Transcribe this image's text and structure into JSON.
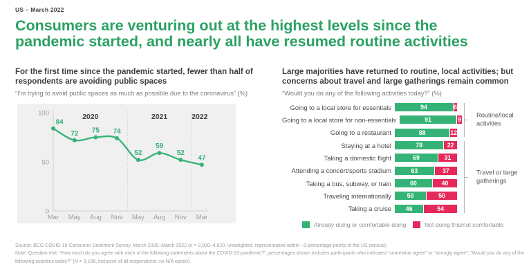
{
  "meta_label": "US – March 2022",
  "title": "Consumers are venturing out at the highest levels since the pandemic started, and nearly all have resumed routine activities",
  "colors": {
    "title_green": "#2ba163",
    "series_green": "#35b377",
    "series_pink": "#e52a5b",
    "panel_background": "#f0f0f0",
    "heading_text": "#3f3f3f",
    "muted_text": "#9b9b9b"
  },
  "footer": {
    "source": "Source: BCG COVID-19 Consumer Sentiment Survey, March 2020–March 2022 (n = 2,000–4,820, unweighted, representative within ~3 percentage points of the US census).",
    "note": "Note: Question text: “How much do you agree with each of the following statements about the COVID-19 pandemic?”, percentages shown includes participants who indicated “somewhat agree” or “strongly agree”; “Would you do any of the following activities today?” (N = 3,108, inclusive of all respondents; no N/A option)."
  },
  "chart_data": [
    {
      "id": "avoiding-public-spaces",
      "type": "line",
      "title": "For the first time since the pandemic started, fewer than half of respondents are avoiding public spaces",
      "subtitle": "“I'm trying to avoid public spaces as much as possible due to the coronavirus” (%)",
      "x": [
        "Mar",
        "May",
        "Aug",
        "Nov",
        "May",
        "Aug",
        "Nov",
        "Mar"
      ],
      "year_groups": [
        {
          "label": "2020",
          "from": 0,
          "to": 3
        },
        {
          "label": "2021",
          "from": 4,
          "to": 6
        },
        {
          "label": "2022",
          "from": 7,
          "to": 7
        }
      ],
      "values": [
        84,
        72,
        75,
        74,
        52,
        59,
        52,
        47
      ],
      "ylim": [
        0,
        100
      ],
      "yticks": [
        0,
        50,
        100
      ],
      "grid": false,
      "line_color": "#35b377"
    },
    {
      "id": "activities-today",
      "type": "bar",
      "stacked": true,
      "orientation": "horizontal",
      "title": "Large majorities have returned to routine, local activities; but concerns about travel and large gatherings remain common",
      "subtitle": "“Would you do any of the following activities today?” (%)",
      "categories": [
        "Going to a local store for essentials",
        "Going to a local store for non-essentials",
        "Going to a restaurant",
        "Staying at a hotel",
        "Taking a domestic flight",
        "Attending a concert/sports stadium",
        "Taking a bus, subway, or train",
        "Traveling internationally",
        "Taking a cruise"
      ],
      "series": [
        {
          "name": "Already doing or comfortable doing",
          "color": "#35b377",
          "values": [
            94,
            91,
            88,
            78,
            69,
            63,
            60,
            50,
            46
          ]
        },
        {
          "name": "Not doing this/not comfortable",
          "color": "#e52a5b",
          "values": [
            6,
            9,
            12,
            22,
            31,
            37,
            40,
            50,
            54
          ]
        }
      ],
      "groups": [
        {
          "label": "Routine/local activities",
          "from": 0,
          "to": 2
        },
        {
          "label": "Travel or large gatherings",
          "from": 3,
          "to": 8
        }
      ],
      "xlim": [
        0,
        100
      ],
      "legend_position": "bottom"
    }
  ]
}
